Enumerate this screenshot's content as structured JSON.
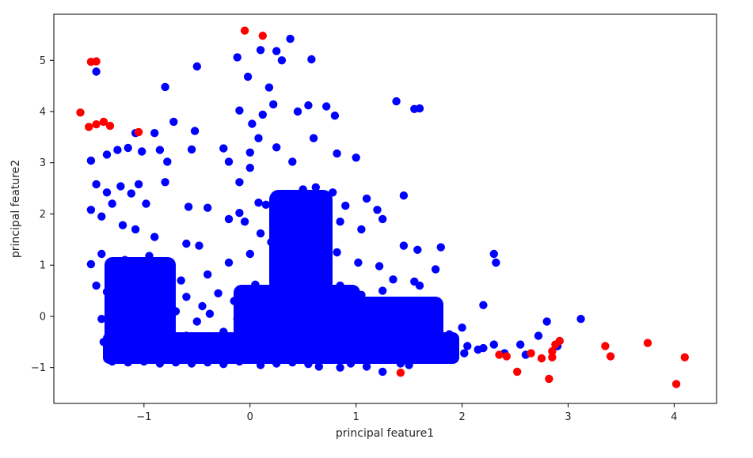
{
  "chart_data": {
    "type": "scatter",
    "title": "",
    "xlabel": "principal feature1",
    "ylabel": "principal feature2",
    "xlim": [
      -1.85,
      4.4
    ],
    "ylim": [
      -1.7,
      5.9
    ],
    "xticks": [
      -1,
      0,
      1,
      2,
      3,
      4
    ],
    "yticks": [
      -1,
      0,
      1,
      2,
      3,
      4,
      5
    ],
    "xtick_labels": [
      "−1",
      "0",
      "1",
      "2",
      "3",
      "4"
    ],
    "ytick_labels": [
      "−1",
      "0",
      "1",
      "2",
      "3",
      "4",
      "5"
    ],
    "grid": false,
    "legend": "none",
    "series": [
      {
        "color": "#0000ff",
        "points": [
          [
            -1.45,
            4.78
          ],
          [
            -0.8,
            4.48
          ],
          [
            -0.5,
            4.88
          ],
          [
            -0.12,
            5.06
          ],
          [
            0.1,
            5.2
          ],
          [
            0.25,
            5.18
          ],
          [
            0.3,
            5.0
          ],
          [
            0.38,
            5.42
          ],
          [
            0.58,
            5.02
          ],
          [
            -0.02,
            4.68
          ],
          [
            0.18,
            4.47
          ],
          [
            0.22,
            4.14
          ],
          [
            -0.1,
            4.02
          ],
          [
            0.12,
            3.94
          ],
          [
            0.02,
            3.76
          ],
          [
            0.45,
            4.0
          ],
          [
            0.55,
            4.12
          ],
          [
            0.72,
            4.1
          ],
          [
            0.8,
            3.92
          ],
          [
            1.38,
            4.2
          ],
          [
            1.55,
            4.05
          ],
          [
            1.6,
            4.06
          ],
          [
            -1.08,
            3.58
          ],
          [
            -0.9,
            3.58
          ],
          [
            -0.72,
            3.8
          ],
          [
            -0.52,
            3.62
          ],
          [
            -1.5,
            3.04
          ],
          [
            -1.35,
            3.16
          ],
          [
            -1.25,
            3.25
          ],
          [
            -1.15,
            3.29
          ],
          [
            -1.02,
            3.22
          ],
          [
            -0.85,
            3.25
          ],
          [
            -0.78,
            3.02
          ],
          [
            -0.55,
            3.26
          ],
          [
            -0.25,
            3.28
          ],
          [
            -0.2,
            3.02
          ],
          [
            -0.1,
            2.62
          ],
          [
            0.0,
            3.2
          ],
          [
            0.0,
            2.9
          ],
          [
            0.08,
            3.48
          ],
          [
            0.25,
            3.3
          ],
          [
            0.4,
            3.02
          ],
          [
            0.6,
            3.48
          ],
          [
            0.82,
            3.18
          ],
          [
            1.0,
            3.1
          ],
          [
            1.45,
            2.36
          ],
          [
            0.62,
            2.52
          ],
          [
            0.78,
            2.42
          ],
          [
            -1.45,
            2.58
          ],
          [
            -1.35,
            2.42
          ],
          [
            -1.3,
            2.2
          ],
          [
            -1.22,
            2.54
          ],
          [
            -1.12,
            2.4
          ],
          [
            -1.05,
            2.58
          ],
          [
            -0.98,
            2.2
          ],
          [
            -0.8,
            2.62
          ],
          [
            -0.58,
            2.14
          ],
          [
            -0.4,
            2.12
          ],
          [
            0.08,
            2.22
          ],
          [
            -0.1,
            2.02
          ],
          [
            0.15,
            2.18
          ],
          [
            0.28,
            2.02
          ],
          [
            0.35,
            2.28
          ],
          [
            0.5,
            2.48
          ],
          [
            0.7,
            2.18
          ],
          [
            0.9,
            2.16
          ],
          [
            1.1,
            2.3
          ],
          [
            1.2,
            2.08
          ],
          [
            -1.5,
            2.08
          ],
          [
            -1.4,
            1.95
          ],
          [
            -1.2,
            1.78
          ],
          [
            -1.08,
            1.7
          ],
          [
            -0.9,
            1.55
          ],
          [
            -0.6,
            1.42
          ],
          [
            -0.48,
            1.38
          ],
          [
            -0.2,
            1.9
          ],
          [
            -0.05,
            1.85
          ],
          [
            0.1,
            1.62
          ],
          [
            0.3,
            1.7
          ],
          [
            0.42,
            1.8
          ],
          [
            0.65,
            1.62
          ],
          [
            0.85,
            1.85
          ],
          [
            1.05,
            1.7
          ],
          [
            1.25,
            1.9
          ],
          [
            1.45,
            1.38
          ],
          [
            1.58,
            1.3
          ],
          [
            1.8,
            1.35
          ],
          [
            2.3,
            1.22
          ],
          [
            2.32,
            1.05
          ],
          [
            1.75,
            0.92
          ],
          [
            -1.5,
            1.02
          ],
          [
            -1.4,
            1.22
          ],
          [
            -1.3,
            0.82
          ],
          [
            -1.18,
            1.1
          ],
          [
            -1.05,
            0.9
          ],
          [
            -0.95,
            1.18
          ],
          [
            -0.85,
            1.0
          ],
          [
            -0.8,
            0.8
          ],
          [
            -0.65,
            0.7
          ],
          [
            -0.4,
            0.82
          ],
          [
            -0.2,
            1.05
          ],
          [
            0.0,
            1.22
          ],
          [
            0.2,
            1.45
          ],
          [
            0.4,
            1.2
          ],
          [
            0.6,
            1.08
          ],
          [
            0.82,
            1.25
          ],
          [
            1.02,
            1.05
          ],
          [
            1.22,
            0.98
          ],
          [
            1.35,
            0.72
          ],
          [
            1.55,
            0.68
          ],
          [
            1.6,
            0.6
          ],
          [
            -1.45,
            0.6
          ],
          [
            -1.35,
            0.48
          ],
          [
            -1.2,
            0.62
          ],
          [
            -1.0,
            0.5
          ],
          [
            -0.82,
            0.4
          ],
          [
            -0.6,
            0.38
          ],
          [
            -0.45,
            0.2
          ],
          [
            -0.3,
            0.45
          ],
          [
            -0.15,
            0.3
          ],
          [
            0.05,
            0.62
          ],
          [
            0.25,
            0.52
          ],
          [
            0.45,
            0.7
          ],
          [
            0.65,
            0.45
          ],
          [
            0.85,
            0.6
          ],
          [
            1.05,
            0.42
          ],
          [
            1.25,
            0.5
          ],
          [
            1.45,
            0.3
          ],
          [
            1.7,
            0.25
          ],
          [
            2.2,
            0.22
          ],
          [
            -1.4,
            -0.05
          ],
          [
            -1.32,
            0.1
          ],
          [
            -1.2,
            -0.2
          ],
          [
            -1.1,
            0.15
          ],
          [
            -1.0,
            -0.3
          ],
          [
            -0.9,
            0.05
          ],
          [
            -0.8,
            -0.15
          ],
          [
            -0.7,
            0.1
          ],
          [
            -0.6,
            -0.38
          ],
          [
            -0.5,
            -0.1
          ],
          [
            -0.38,
            0.05
          ],
          [
            -0.25,
            -0.3
          ],
          [
            -0.12,
            -0.05
          ],
          [
            0.0,
            0.15
          ],
          [
            0.12,
            -0.22
          ],
          [
            0.25,
            0.02
          ],
          [
            0.38,
            -0.15
          ],
          [
            0.5,
            0.12
          ],
          [
            0.62,
            -0.28
          ],
          [
            0.75,
            0.05
          ],
          [
            0.88,
            -0.18
          ],
          [
            1.0,
            0.1
          ],
          [
            1.12,
            -0.32
          ],
          [
            1.25,
            -0.08
          ],
          [
            1.38,
            -0.25
          ],
          [
            1.5,
            0.02
          ],
          [
            1.62,
            -0.3
          ],
          [
            1.75,
            -0.12
          ],
          [
            1.88,
            -0.35
          ],
          [
            2.0,
            -0.22
          ],
          [
            2.3,
            -0.55
          ],
          [
            2.55,
            -0.55
          ],
          [
            2.72,
            -0.38
          ],
          [
            2.8,
            -0.1
          ],
          [
            3.12,
            -0.05
          ],
          [
            -1.38,
            -0.5
          ],
          [
            -1.3,
            -0.65
          ],
          [
            -1.2,
            -0.45
          ],
          [
            -1.1,
            -0.75
          ],
          [
            -1.0,
            -0.55
          ],
          [
            -0.9,
            -0.8
          ],
          [
            -0.78,
            -0.6
          ],
          [
            -0.65,
            -0.85
          ],
          [
            -0.52,
            -0.58
          ],
          [
            -0.4,
            -0.78
          ],
          [
            -0.28,
            -0.55
          ],
          [
            -0.15,
            -0.82
          ],
          [
            0.0,
            -0.6
          ],
          [
            0.15,
            -0.78
          ],
          [
            0.28,
            -0.52
          ],
          [
            0.42,
            -0.7
          ],
          [
            0.55,
            -0.5
          ],
          [
            0.7,
            -0.72
          ],
          [
            0.85,
            -0.55
          ],
          [
            1.0,
            -0.68
          ],
          [
            1.15,
            -0.52
          ],
          [
            1.3,
            -0.65
          ],
          [
            1.45,
            -0.5
          ],
          [
            1.6,
            -0.62
          ],
          [
            1.75,
            -0.55
          ],
          [
            1.9,
            -0.62
          ],
          [
            2.05,
            -0.58
          ],
          [
            2.2,
            -0.62
          ],
          [
            -1.3,
            -0.88
          ],
          [
            -1.15,
            -0.9
          ],
          [
            -1.0,
            -0.88
          ],
          [
            -0.85,
            -0.92
          ],
          [
            -0.7,
            -0.9
          ],
          [
            -0.55,
            -0.92
          ],
          [
            -0.4,
            -0.9
          ],
          [
            -0.25,
            -0.93
          ],
          [
            -0.1,
            -0.88
          ],
          [
            0.1,
            -0.95
          ],
          [
            0.25,
            -0.92
          ],
          [
            0.4,
            -0.9
          ],
          [
            0.55,
            -0.93
          ],
          [
            0.65,
            -0.98
          ],
          [
            0.85,
            -1.0
          ],
          [
            0.95,
            -0.92
          ],
          [
            1.1,
            -0.98
          ],
          [
            1.25,
            -1.08
          ],
          [
            1.42,
            -0.92
          ],
          [
            1.5,
            -0.95
          ],
          [
            2.02,
            -0.72
          ],
          [
            2.15,
            -0.65
          ],
          [
            2.4,
            -0.72
          ],
          [
            2.6,
            -0.75
          ],
          [
            2.9,
            -0.58
          ]
        ]
      },
      {
        "color": "#ff0000",
        "points": [
          [
            -1.5,
            4.97
          ],
          [
            -1.45,
            4.98
          ],
          [
            -0.05,
            5.58
          ],
          [
            0.12,
            5.48
          ],
          [
            -1.6,
            3.98
          ],
          [
            -1.52,
            3.7
          ],
          [
            -1.45,
            3.75
          ],
          [
            -1.38,
            3.8
          ],
          [
            -1.32,
            3.72
          ],
          [
            -1.05,
            3.6
          ],
          [
            1.42,
            -1.1
          ],
          [
            2.35,
            -0.75
          ],
          [
            2.42,
            -0.78
          ],
          [
            2.52,
            -1.08
          ],
          [
            2.65,
            -0.72
          ],
          [
            2.75,
            -0.82
          ],
          [
            2.82,
            -1.22
          ],
          [
            2.85,
            -0.8
          ],
          [
            2.85,
            -0.68
          ],
          [
            2.88,
            -0.55
          ],
          [
            2.92,
            -0.48
          ],
          [
            3.35,
            -0.58
          ],
          [
            3.4,
            -0.78
          ],
          [
            3.75,
            -0.52
          ],
          [
            4.02,
            -1.32
          ],
          [
            4.1,
            -0.8
          ]
        ]
      }
    ]
  }
}
